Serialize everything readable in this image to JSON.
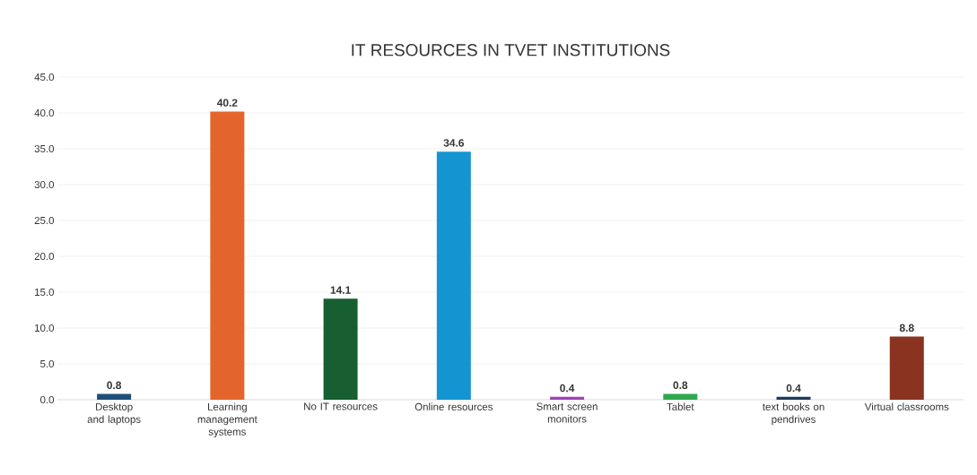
{
  "chart_data": {
    "type": "bar",
    "title": "IT RESOURCES IN TVET INSTITUTIONS",
    "categories": [
      "Desktop and laptops",
      "Learning management systems",
      "No IT resources",
      "Online resources",
      "Smart screen monitors",
      "Tablet",
      "text books on pendrives",
      "Virtual classrooms"
    ],
    "values": [
      0.8,
      40.2,
      14.1,
      34.6,
      0.4,
      0.8,
      0.4,
      8.8
    ],
    "colors": [
      "#1f4e79",
      "#e4652c",
      "#175e30",
      "#1495d1",
      "#a142b5",
      "#2fa84f",
      "#1e3a5c",
      "#8a3320"
    ],
    "ylim": [
      0,
      45
    ],
    "yticks": [
      {
        "value": 0,
        "label": "0.0"
      },
      {
        "value": 5,
        "label": "5.0"
      },
      {
        "value": 10,
        "label": "10.0"
      },
      {
        "value": 15,
        "label": "15.0"
      },
      {
        "value": 20,
        "label": "20.0"
      },
      {
        "value": 25,
        "label": "25.0"
      },
      {
        "value": 30,
        "label": "30.0"
      },
      {
        "value": 35,
        "label": "35.0"
      },
      {
        "value": 40,
        "label": "40.0"
      },
      {
        "value": 45,
        "label": "45.0"
      }
    ],
    "grid": "y",
    "data_labels": true
  }
}
